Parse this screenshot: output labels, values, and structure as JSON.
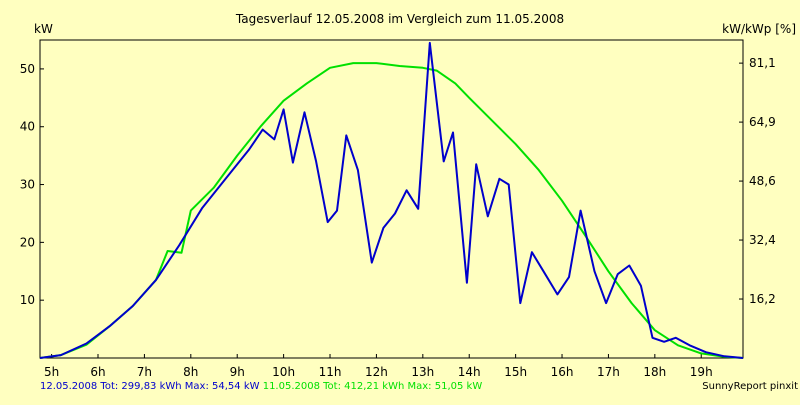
{
  "chart_data": {
    "type": "line",
    "title": "Tagesverlauf 12.05.2008 im Vergleich zum 11.05.2008",
    "ylabel_left": "kW",
    "ylabel_right": "kW/kWp [%]",
    "xlim": [
      4.75,
      19.9
    ],
    "ylim": [
      0,
      55
    ],
    "x_ticks": [
      {
        "value": 5,
        "label": "5h"
      },
      {
        "value": 6,
        "label": "6h"
      },
      {
        "value": 7,
        "label": "7h"
      },
      {
        "value": 8,
        "label": "8h"
      },
      {
        "value": 9,
        "label": "9h"
      },
      {
        "value": 10,
        "label": "10h"
      },
      {
        "value": 11,
        "label": "11h"
      },
      {
        "value": 12,
        "label": "12h"
      },
      {
        "value": 13,
        "label": "13h"
      },
      {
        "value": 14,
        "label": "14h"
      },
      {
        "value": 15,
        "label": "15h"
      },
      {
        "value": 16,
        "label": "16h"
      },
      {
        "value": 17,
        "label": "17h"
      },
      {
        "value": 18,
        "label": "18h"
      },
      {
        "value": 19,
        "label": "19h"
      }
    ],
    "y_ticks_left": [
      {
        "value": 10,
        "label": "10"
      },
      {
        "value": 20,
        "label": "20"
      },
      {
        "value": 30,
        "label": "30"
      },
      {
        "value": 40,
        "label": "40"
      },
      {
        "value": 50,
        "label": "50"
      }
    ],
    "y_ticks_right": [
      {
        "value": 10.2,
        "label": "16,2"
      },
      {
        "value": 20.4,
        "label": "32,4"
      },
      {
        "value": 30.6,
        "label": "48,6"
      },
      {
        "value": 40.8,
        "label": "64,9"
      },
      {
        "value": 51.0,
        "label": "81,1"
      }
    ],
    "grid": false,
    "series": [
      {
        "name": "12.05.2008",
        "color": "#0000cc",
        "points": [
          [
            4.75,
            0
          ],
          [
            5.2,
            0.5
          ],
          [
            5.75,
            2.5
          ],
          [
            6.25,
            5.5
          ],
          [
            6.75,
            9
          ],
          [
            7.25,
            13.5
          ],
          [
            7.75,
            19.5
          ],
          [
            8.25,
            26
          ],
          [
            8.75,
            31
          ],
          [
            9.25,
            36
          ],
          [
            9.55,
            39.5
          ],
          [
            9.8,
            37.8
          ],
          [
            10.0,
            43
          ],
          [
            10.2,
            33.8
          ],
          [
            10.45,
            42.5
          ],
          [
            10.7,
            34
          ],
          [
            10.95,
            23.5
          ],
          [
            11.15,
            25.5
          ],
          [
            11.35,
            38.5
          ],
          [
            11.6,
            32.5
          ],
          [
            11.9,
            16.5
          ],
          [
            12.15,
            22.5
          ],
          [
            12.4,
            25
          ],
          [
            12.65,
            29
          ],
          [
            12.9,
            25.8
          ],
          [
            13.15,
            54.5
          ],
          [
            13.45,
            34
          ],
          [
            13.65,
            39
          ],
          [
            13.95,
            13
          ],
          [
            14.15,
            33.5
          ],
          [
            14.4,
            24.5
          ],
          [
            14.65,
            31
          ],
          [
            14.85,
            30
          ],
          [
            15.1,
            9.5
          ],
          [
            15.35,
            18.3
          ],
          [
            15.6,
            15
          ],
          [
            15.9,
            11
          ],
          [
            16.15,
            14
          ],
          [
            16.4,
            25.5
          ],
          [
            16.7,
            15
          ],
          [
            16.95,
            9.5
          ],
          [
            17.2,
            14.5
          ],
          [
            17.45,
            16
          ],
          [
            17.7,
            12.5
          ],
          [
            17.95,
            3.5
          ],
          [
            18.2,
            2.8
          ],
          [
            18.45,
            3.5
          ],
          [
            18.75,
            2.2
          ],
          [
            19.1,
            1.0
          ],
          [
            19.5,
            0.3
          ],
          [
            19.9,
            0
          ]
        ]
      },
      {
        "name": "11.05.2008",
        "color": "#00e000",
        "points": [
          [
            4.75,
            0
          ],
          [
            5.2,
            0.5
          ],
          [
            5.75,
            2.3
          ],
          [
            6.25,
            5.5
          ],
          [
            6.75,
            9
          ],
          [
            7.25,
            13.5
          ],
          [
            7.5,
            18.5
          ],
          [
            7.8,
            18.2
          ],
          [
            8.0,
            25.5
          ],
          [
            8.5,
            29.5
          ],
          [
            9.0,
            35
          ],
          [
            9.5,
            40
          ],
          [
            10.0,
            44.5
          ],
          [
            10.5,
            47.5
          ],
          [
            11.0,
            50.2
          ],
          [
            11.5,
            51.0
          ],
          [
            12.0,
            51.0
          ],
          [
            12.5,
            50.5
          ],
          [
            13.0,
            50.2
          ],
          [
            13.3,
            49.7
          ],
          [
            13.7,
            47.5
          ],
          [
            14.0,
            45
          ],
          [
            14.5,
            41
          ],
          [
            15.0,
            37.0
          ],
          [
            15.5,
            32.5
          ],
          [
            16.0,
            27.2
          ],
          [
            16.5,
            21.2
          ],
          [
            17.0,
            15.0
          ],
          [
            17.5,
            9.5
          ],
          [
            18.0,
            4.8
          ],
          [
            18.5,
            2.2
          ],
          [
            19.0,
            0.8
          ],
          [
            19.5,
            0.2
          ],
          [
            19.9,
            0
          ]
        ]
      }
    ]
  },
  "footer": {
    "series1_text": "12.05.2008 Tot: 299,83 kWh Max: 54,54 kW",
    "series2_text": "11.05.2008 Tot: 412,21 kWh Max: 51,05 kW",
    "credit": "SunnyReport pinxit"
  },
  "colors": {
    "background": "#ffffc0",
    "axis": "#000000"
  }
}
